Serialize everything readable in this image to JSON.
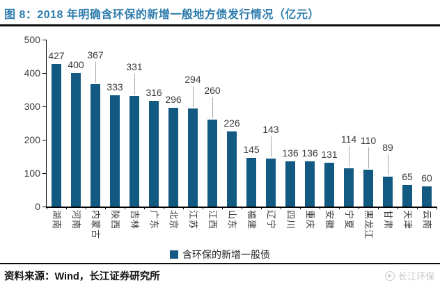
{
  "header": {
    "title": "图 8：2018 年明确含环保的新增一般地方债发行情况（亿元）"
  },
  "chart_data": {
    "type": "bar",
    "title": "2018 年明确含环保的新增一般地方债发行情况",
    "unit": "亿元",
    "categories": [
      "湖南",
      "河南",
      "内蒙古",
      "陕西",
      "吉林",
      "广东",
      "北京",
      "江苏",
      "江西",
      "山东",
      "福建",
      "辽宁",
      "四川",
      "重庆",
      "安徽",
      "宁夏",
      "黑龙江",
      "甘肃",
      "天津",
      "云南"
    ],
    "values": [
      427,
      400,
      367,
      333,
      331,
      316,
      296,
      294,
      260,
      226,
      145,
      143,
      136,
      136,
      131,
      114,
      110,
      89,
      65,
      60
    ],
    "xlabel": "",
    "ylabel": "",
    "ylim": [
      0,
      500
    ],
    "yticks": [
      0,
      100,
      200,
      300,
      400,
      500
    ],
    "grid": false,
    "data_labels": true,
    "raised_label_indices": [
      2,
      4,
      7,
      8,
      11,
      15,
      16,
      17
    ],
    "legend": [
      "含环保的新增一般债"
    ],
    "legend_position": "bottom",
    "bar_color": "#135a82"
  },
  "footer": {
    "source": "资料来源：Wind，长江证券研究所",
    "watermark": "长江环保"
  },
  "colors": {
    "title_blue": "#2d7cad",
    "bar_blue": "#135a82",
    "label_gray": "#3a3a3a",
    "leader_gray": "#a8a8a8",
    "rule_black": "#0b0b0b",
    "watermark_gray": "#c7c7c7"
  }
}
